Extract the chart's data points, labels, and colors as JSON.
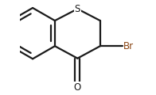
{
  "background_color": "#ffffff",
  "line_color": "#1a1a1a",
  "line_width": 1.6,
  "S_label": "S",
  "Br_label": "Br",
  "O_label": "O",
  "S_color": "#1a1a1a",
  "Br_color": "#8B4513",
  "O_color": "#1a1a1a",
  "font_size_S": 8.5,
  "font_size_Br": 8.5,
  "font_size_O": 8.5,
  "figsize": [
    1.96,
    1.2
  ],
  "dpi": 100,
  "xlim": [
    -0.08,
    1.1
  ],
  "ylim": [
    0.05,
    0.98
  ]
}
